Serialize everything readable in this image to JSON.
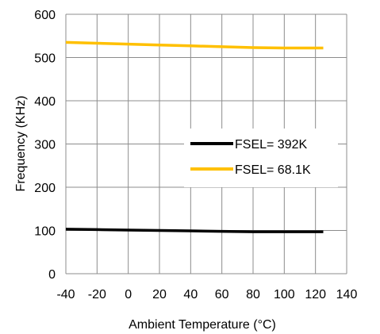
{
  "chart_data": {
    "type": "line",
    "xlabel": "Ambient Temperature (°C)",
    "ylabel": "Frequency (KHz)",
    "xlim": [
      -40,
      140
    ],
    "ylim": [
      0,
      600
    ],
    "xticks": [
      "-40",
      "-20",
      "0",
      "20",
      "40",
      "60",
      "80",
      "100",
      "120",
      "140"
    ],
    "yticks": [
      "0",
      "100",
      "200",
      "300",
      "400",
      "500",
      "600"
    ],
    "grid": true,
    "legend_position": "right",
    "series": [
      {
        "name": "FSEL= 392K",
        "color": "#000000",
        "x": [
          -40,
          -20,
          0,
          20,
          40,
          60,
          80,
          100,
          125
        ],
        "y": [
          103,
          102,
          101,
          100,
          99,
          98,
          97,
          97,
          97
        ]
      },
      {
        "name": "FSEL= 68.1K",
        "color": "#FFC000",
        "x": [
          -40,
          -20,
          0,
          20,
          40,
          60,
          80,
          100,
          125
        ],
        "y": [
          535,
          533,
          531,
          529,
          527,
          525,
          523,
          522,
          522
        ]
      }
    ]
  }
}
